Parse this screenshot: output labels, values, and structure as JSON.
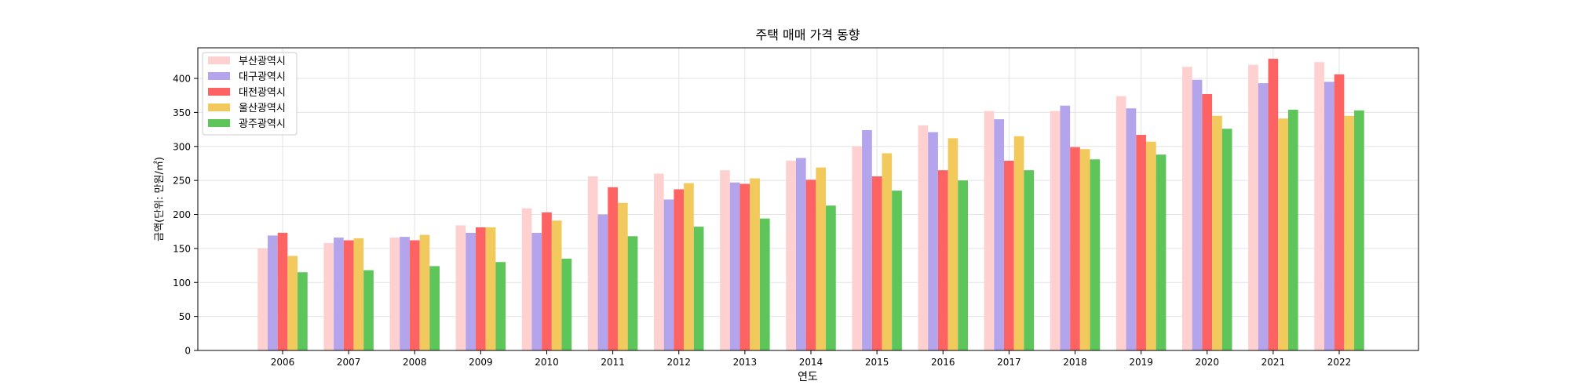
{
  "chart_data": {
    "type": "bar",
    "title": "주택 매매 가격 동향",
    "xlabel": "연도",
    "ylabel": "금액(단위: 만원/㎡)",
    "categories": [
      "2006",
      "2007",
      "2008",
      "2009",
      "2010",
      "2011",
      "2012",
      "2013",
      "2014",
      "2015",
      "2016",
      "2017",
      "2018",
      "2019",
      "2020",
      "2021",
      "2022"
    ],
    "ylim": [
      0,
      445
    ],
    "yticks": [
      0,
      50,
      100,
      150,
      200,
      250,
      300,
      350,
      400
    ],
    "grid": true,
    "legend_position": "top-left",
    "series": [
      {
        "name": "부산광역시",
        "color": "#ffd0d0",
        "values": [
          150,
          158,
          166,
          184,
          209,
          256,
          260,
          265,
          279,
          300,
          331,
          352,
          352,
          374,
          417,
          420,
          424
        ]
      },
      {
        "name": "대구광역시",
        "color": "#b4a4ec",
        "values": [
          169,
          166,
          167,
          173,
          173,
          200,
          222,
          247,
          283,
          324,
          321,
          340,
          360,
          356,
          398,
          393,
          395
        ]
      },
      {
        "name": "대전광역시",
        "color": "#fe6363",
        "values": [
          173,
          162,
          162,
          181,
          203,
          240,
          237,
          245,
          251,
          256,
          265,
          279,
          299,
          317,
          377,
          429,
          406
        ]
      },
      {
        "name": "울산광역시",
        "color": "#f2c95c",
        "values": [
          139,
          165,
          170,
          181,
          191,
          217,
          246,
          253,
          269,
          290,
          312,
          315,
          296,
          307,
          345,
          341,
          345
        ]
      },
      {
        "name": "광주광역시",
        "color": "#5ec55b",
        "values": [
          115,
          118,
          124,
          130,
          135,
          168,
          182,
          194,
          213,
          235,
          250,
          265,
          281,
          288,
          326,
          354,
          353
        ]
      }
    ]
  }
}
